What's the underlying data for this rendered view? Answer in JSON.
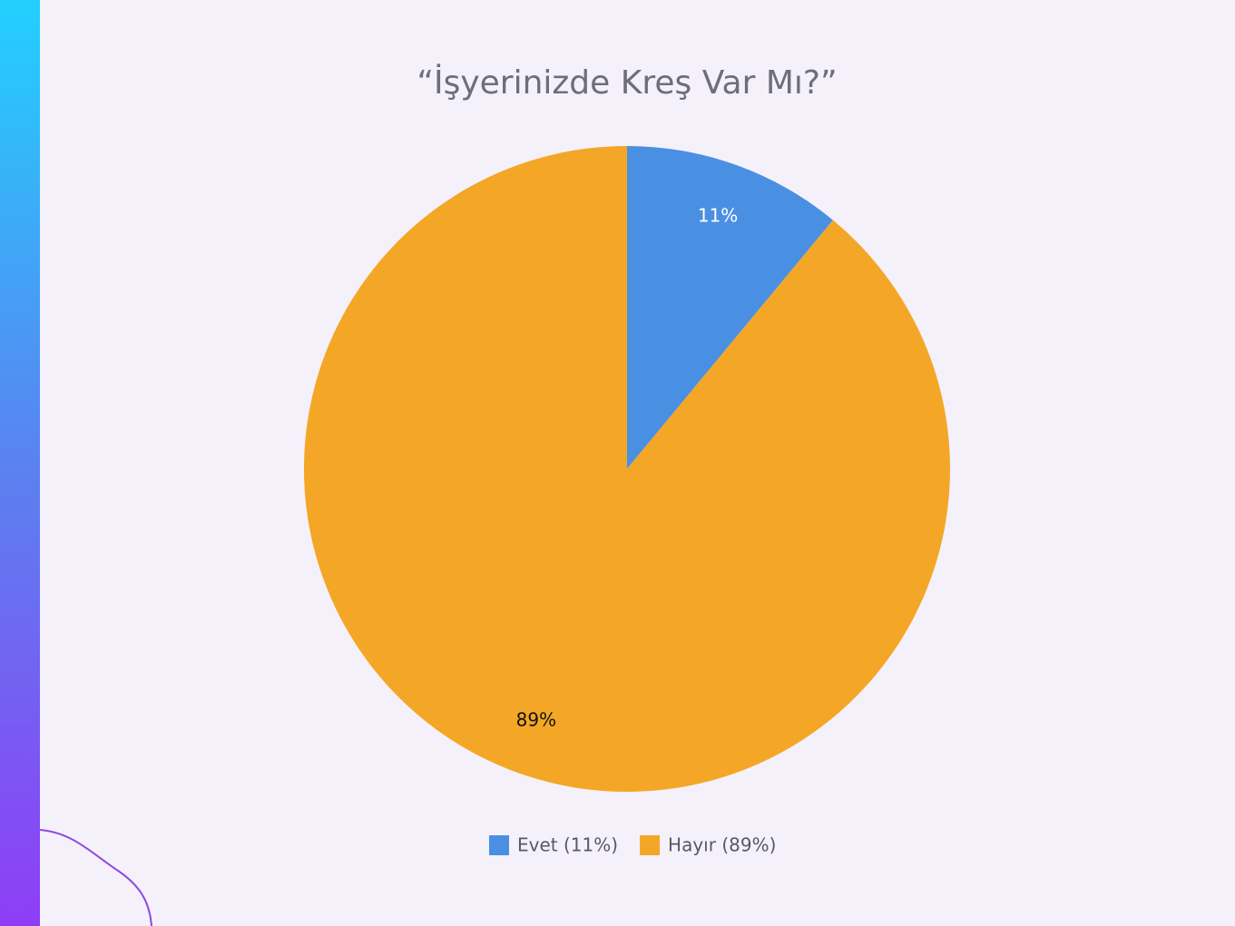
{
  "chart_data": {
    "type": "pie",
    "title": "“İşyerinizde Kreş Var Mı?”",
    "categories": [
      "Evet (11%)",
      "Hayır (89%)"
    ],
    "values": [
      11,
      89
    ],
    "value_labels": [
      "11%",
      "89%"
    ],
    "colors": [
      "#4a90e2",
      "#f4a726"
    ],
    "value_label_colors": [
      "#ffffff",
      "#111111"
    ],
    "legend": "bottom"
  }
}
